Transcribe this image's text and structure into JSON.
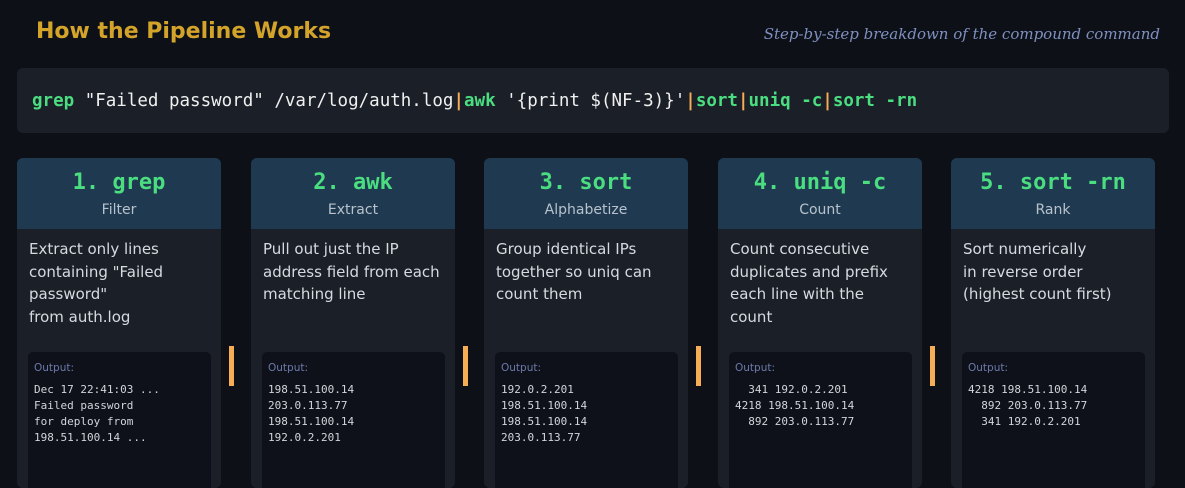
{
  "header": {
    "title": "How the Pipeline Works",
    "subtitle": "Step-by-step breakdown of the compound command"
  },
  "command": {
    "parts": [
      {
        "kw": "grep",
        "rest": " \"Failed password\" /var/log/auth.log"
      },
      {
        "kw": "awk",
        "rest": " '{print $(NF-3)}'"
      },
      {
        "kw": "sort",
        "rest": ""
      },
      {
        "kw": "uniq -c",
        "rest": ""
      },
      {
        "kw": "sort -rn",
        "rest": ""
      }
    ],
    "pipe": "|"
  },
  "output_label": "Output:",
  "steps": [
    {
      "name": "1. grep",
      "role": "Filter",
      "desc": [
        "Extract only lines",
        "containing \"Failed",
        "password\"",
        "from auth.log"
      ],
      "output": [
        "Dec 17 22:41:03 ...",
        "Failed password",
        "for deploy from",
        "198.51.100.14 ..."
      ]
    },
    {
      "name": "2. awk",
      "role": "Extract",
      "desc": [
        "Pull out just the IP",
        "address field from each",
        "matching line"
      ],
      "output": [
        "198.51.100.14",
        "203.0.113.77",
        "198.51.100.14",
        "192.0.2.201"
      ]
    },
    {
      "name": "3. sort",
      "role": "Alphabetize",
      "desc": [
        "Group identical IPs",
        "together so uniq can",
        "count them"
      ],
      "output": [
        "192.0.2.201",
        "198.51.100.14",
        "198.51.100.14",
        "203.0.113.77"
      ]
    },
    {
      "name": "4. uniq -c",
      "role": "Count",
      "desc": [
        "Count consecutive",
        "duplicates and prefix",
        "each line with the",
        "count"
      ],
      "output": [
        "  341 192.0.2.201",
        "4218 198.51.100.14",
        "  892 203.0.113.77"
      ]
    },
    {
      "name": "5. sort -rn",
      "role": "Rank",
      "desc": [
        "Sort numerically",
        "in reverse order",
        "(highest count first)"
      ],
      "output": [
        "4218 198.51.100.14",
        "  892 203.0.113.77",
        "  341 192.0.2.201"
      ]
    }
  ],
  "colors": {
    "accent": "#4ade80",
    "pipe": "#f6ad55",
    "title": "#d4a32a",
    "header_bg": "#1f3a50"
  }
}
